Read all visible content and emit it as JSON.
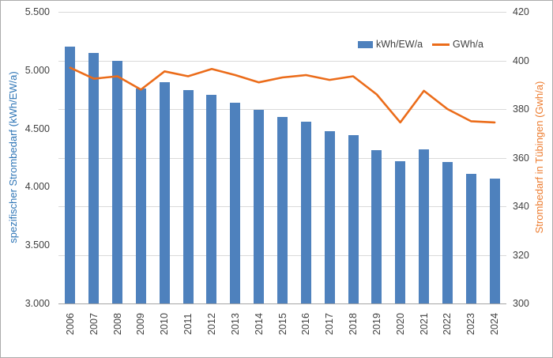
{
  "chart_data": {
    "type": "combo-bar-line",
    "categories": [
      "2006",
      "2007",
      "2008",
      "2009",
      "2010",
      "2011",
      "2012",
      "2013",
      "2014",
      "2015",
      "2016",
      "2017",
      "2018",
      "2019",
      "2020",
      "2021",
      "2022",
      "2023",
      "2024"
    ],
    "series": [
      {
        "name": "kWh/EW/a",
        "type": "bar",
        "axis": "left",
        "color": "#4e81bd",
        "values": [
          5200,
          5150,
          5080,
          4840,
          4900,
          4830,
          4790,
          4720,
          4660,
          4600,
          4560,
          4480,
          4440,
          4315,
          4220,
          4320,
          4210,
          4110,
          4070
        ]
      },
      {
        "name": "GWh/a",
        "type": "line",
        "axis": "right",
        "color": "#eb6c1a",
        "values": [
          397,
          392.5,
          393.5,
          388,
          395.5,
          393.5,
          396.5,
          394,
          391,
          393,
          394,
          392,
          393.5,
          386,
          374.5,
          387.5,
          380,
          375,
          374.5
        ]
      }
    ],
    "left_axis": {
      "title": "spezifischer Strombedarf (kWh/EW/a)",
      "min": 3000,
      "max": 5500,
      "ticks": [
        {
          "label": "5.500",
          "value": 5500
        },
        {
          "label": "5.000",
          "value": 5000
        },
        {
          "label": "4.500",
          "value": 4500
        },
        {
          "label": "4.000",
          "value": 4000
        },
        {
          "label": "3.500",
          "value": 3500
        },
        {
          "label": "3.000",
          "value": 3000
        }
      ]
    },
    "right_axis": {
      "title": "Strombedarf in Tübingen (Gwh/a)",
      "min": 300,
      "max": 420,
      "ticks": [
        {
          "label": "420",
          "value": 420
        },
        {
          "label": "400",
          "value": 400
        },
        {
          "label": "380",
          "value": 380
        },
        {
          "label": "360",
          "value": 360
        },
        {
          "label": "340",
          "value": 340
        },
        {
          "label": "320",
          "value": 320
        },
        {
          "label": "300",
          "value": 300
        }
      ]
    },
    "legend": {
      "position": "top-right",
      "items": [
        {
          "label": "kWh/EW/a",
          "swatch": "bar",
          "color": "#4e81bd"
        },
        {
          "label": "GWh/a",
          "swatch": "line",
          "color": "#eb6c1a"
        }
      ]
    },
    "grid": true,
    "colors": {
      "bar": "#4e81bd",
      "line": "#eb6c1a",
      "left_axis_title": "#2e75b6",
      "right_axis_title": "#ed7d31",
      "tick_text": "#404040",
      "gridline": "#d9d9d9",
      "axis_line": "#a6a6a6",
      "figure_border": "#ababab"
    }
  }
}
